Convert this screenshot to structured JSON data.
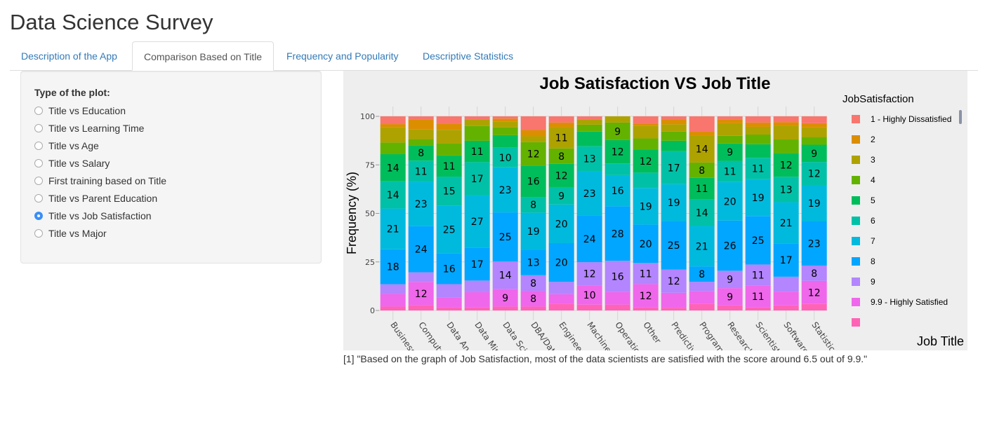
{
  "app_title": "Data Science Survey",
  "tabs": [
    {
      "label": "Description of the App",
      "active": false
    },
    {
      "label": "Comparison Based on Title",
      "active": true
    },
    {
      "label": "Frequency and Popularity",
      "active": false
    },
    {
      "label": "Descriptive Statistics",
      "active": false
    }
  ],
  "sidebar": {
    "label": "Type of the plot:",
    "options": [
      {
        "label": "Title vs Education",
        "selected": false
      },
      {
        "label": "Title vs Learning Time",
        "selected": false
      },
      {
        "label": "Title vs Age",
        "selected": false
      },
      {
        "label": "Title vs Salary",
        "selected": false
      },
      {
        "label": "First training based on Title",
        "selected": false
      },
      {
        "label": "Title vs Parent Education",
        "selected": false
      },
      {
        "label": "Title vs Job Satisfaction",
        "selected": true
      },
      {
        "label": "Title vs Major",
        "selected": false
      }
    ]
  },
  "note": "[1] \"Based on the graph of Job Satisfaction, most of the data scientists are satisfied with the score around 6.5 out of 9.9.\"",
  "chart_data": {
    "type": "bar",
    "stacked": true,
    "title": "Job Satisfaction VS Job Title",
    "xlabel": "Job Title",
    "ylabel": "Frequency (%)",
    "ylim": [
      0,
      100
    ],
    "yticks": [
      "0",
      "25",
      "50",
      "75",
      "100"
    ],
    "legend_title": "JobSatisfaction",
    "legend_position": "right",
    "categories": [
      "Business Analyst",
      "Computer Scientist",
      "Data Analyst",
      "Data Miner",
      "Data Scientist",
      "DBA/Database Engineer",
      "Engineer",
      "Machine Learning Engineer",
      "Operations Research Practitioner",
      "Other",
      "Predictive Modeler",
      "Programmer",
      "Researcher",
      "Scientist/Researcher",
      "Software Developer/Software Engineer",
      "Statistician"
    ],
    "series": [
      {
        "name": "1 - Highly Dissatisfied",
        "color": "#F8766D",
        "values": [
          4,
          1.8,
          4,
          1.8,
          1.2,
          7,
          3.2,
          1.8,
          0,
          4,
          1.8,
          8,
          1.8,
          3.2,
          3,
          3.6
        ],
        "labels": [
          null,
          null,
          null,
          null,
          null,
          null,
          null,
          null,
          null,
          null,
          null,
          null,
          null,
          null,
          null,
          null
        ]
      },
      {
        "name": "2",
        "color": "#DB8E00",
        "values": [
          1.5,
          5,
          3,
          0,
          1.4,
          3.2,
          2.4,
          0,
          0,
          1,
          2.3,
          2,
          1.8,
          2.2,
          1.8,
          2.2
        ],
        "labels": [
          null,
          null,
          null,
          null,
          null,
          null,
          null,
          null,
          null,
          null,
          null,
          null,
          null,
          null,
          null,
          null
        ]
      },
      {
        "name": "3",
        "color": "#AEA200",
        "values": [
          8,
          5,
          7,
          3.2,
          3,
          3,
          11,
          2.5,
          3.2,
          6.5,
          3.8,
          14,
          6.5,
          4,
          7,
          5
        ],
        "labels": [
          null,
          null,
          null,
          null,
          null,
          null,
          11,
          null,
          null,
          null,
          null,
          14,
          null,
          null,
          null,
          null
        ]
      },
      {
        "name": "4",
        "color": "#64B200",
        "values": [
          6,
          3.2,
          6.4,
          7.6,
          4,
          12,
          8,
          3.6,
          9,
          5.8,
          4.7,
          8,
          4,
          5,
          7,
          4
        ],
        "labels": [
          null,
          null,
          null,
          null,
          null,
          12,
          8,
          null,
          9,
          null,
          null,
          8,
          null,
          null,
          null,
          null
        ]
      },
      {
        "name": "5",
        "color": "#00BD5C",
        "values": [
          14,
          8,
          11,
          11,
          6.4,
          16,
          12,
          7.6,
          12,
          12,
          5.4,
          11,
          9,
          7,
          12,
          9
        ],
        "labels": [
          14,
          8,
          11,
          11,
          null,
          16,
          12,
          null,
          12,
          12,
          null,
          11,
          9,
          null,
          12,
          9
        ]
      },
      {
        "name": "6",
        "color": "#00C1A7",
        "values": [
          14,
          11,
          15,
          17,
          10,
          8,
          9,
          13,
          6,
          8,
          17,
          14,
          11,
          11,
          13,
          12
        ],
        "labels": [
          14,
          11,
          15,
          17,
          10,
          8,
          9,
          13,
          null,
          null,
          17,
          14,
          11,
          11,
          13,
          12
        ]
      },
      {
        "name": "7",
        "color": "#00BADE",
        "values": [
          21,
          23,
          25,
          27,
          23,
          19,
          20,
          23,
          16,
          19,
          19,
          21,
          20,
          19,
          21,
          19
        ],
        "labels": [
          21,
          23,
          25,
          27,
          23,
          19,
          20,
          23,
          16,
          19,
          19,
          21,
          20,
          19,
          21,
          19
        ]
      },
      {
        "name": "8",
        "color": "#00A6FF",
        "values": [
          18,
          24,
          16,
          17,
          25,
          13,
          20,
          24,
          28,
          20,
          25,
          8,
          26,
          25,
          17,
          23
        ],
        "labels": [
          18,
          24,
          16,
          17,
          25,
          13,
          20,
          24,
          28,
          20,
          25,
          8,
          26,
          25,
          17,
          23
        ]
      },
      {
        "name": "9",
        "color": "#B385FF",
        "values": [
          5,
          5,
          7,
          6,
          14,
          8,
          6.4,
          12,
          16,
          11,
          12,
          4.8,
          9,
          11,
          7.6,
          8
        ],
        "labels": [
          null,
          null,
          null,
          null,
          14,
          8,
          null,
          12,
          16,
          11,
          12,
          null,
          9,
          11,
          null,
          8
        ]
      },
      {
        "name": "9.9 - Highly Satisfied",
        "color": "#EF67EB",
        "values": [
          6.5,
          12,
          5,
          7.7,
          9,
          8,
          5,
          10,
          6.5,
          12,
          7.7,
          6.7,
          9,
          11,
          7,
          12
        ],
        "labels": [
          null,
          12,
          null,
          null,
          9,
          8,
          null,
          10,
          null,
          12,
          null,
          null,
          9,
          11,
          null,
          12
        ]
      },
      {
        "name": "",
        "color": "#FF63B6",
        "values": [
          2,
          2.8,
          1.7,
          1.7,
          2,
          2,
          3.4,
          3,
          3,
          1.7,
          1.4,
          3.4,
          2.6,
          1.7,
          2.6,
          3.4
        ],
        "labels": [
          null,
          null,
          null,
          null,
          null,
          null,
          null,
          null,
          null,
          null,
          null,
          null,
          null,
          null,
          null,
          null
        ]
      }
    ]
  }
}
